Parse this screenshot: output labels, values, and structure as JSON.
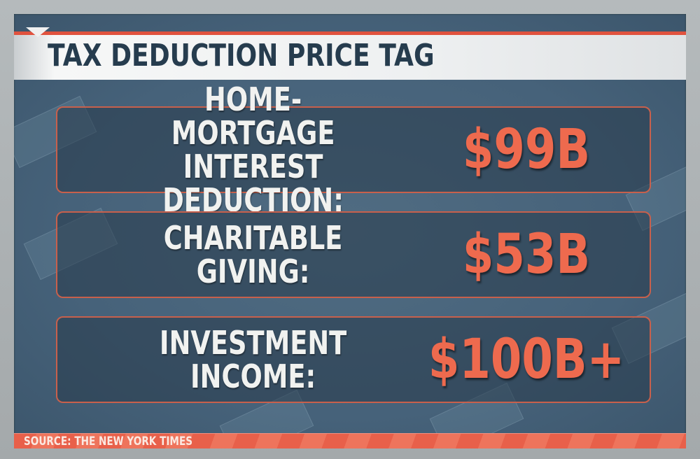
{
  "title": "TAX DEDUCTION PRICE TAG",
  "rows": [
    {
      "label": "HOME-MORTGAGE\nINTEREST DEDUCTION:",
      "value": "$99B"
    },
    {
      "label": "CHARITABLE GIVING:",
      "value": "$53B"
    },
    {
      "label": "INVESTMENT INCOME:",
      "value": "$100B+"
    }
  ],
  "source": "SOURCE: THE NEW YORK TIMES",
  "colors": {
    "accent": "#e0523e",
    "value": "#ee6a4e",
    "title": "#263c4e",
    "background": "#46627a"
  }
}
